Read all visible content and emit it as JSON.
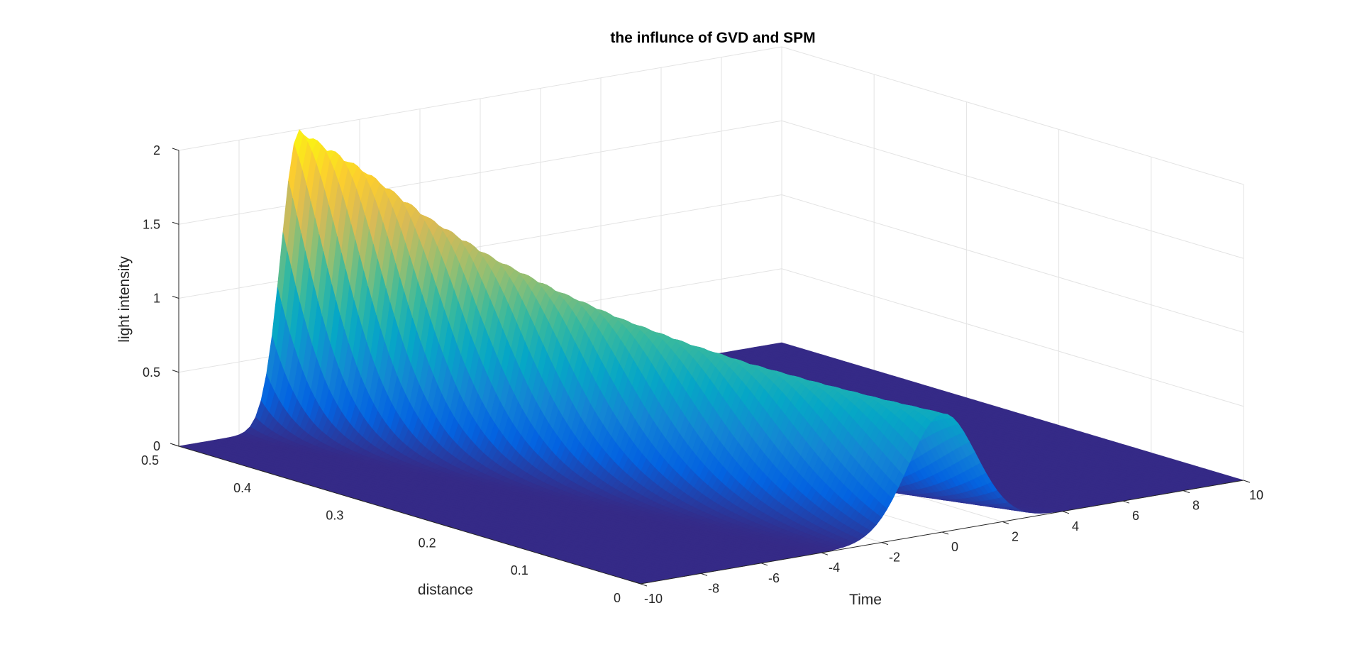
{
  "chart_data": {
    "type": "surface",
    "title": "the influnce of GVD and SPM",
    "xlabel": "Time",
    "ylabel": "distance",
    "zlabel": "light intensity",
    "xlim": [
      -10,
      10
    ],
    "ylim": [
      0,
      0.5
    ],
    "zlim": [
      0,
      2
    ],
    "xticks": [
      "-10",
      "-8",
      "-6",
      "-4",
      "-2",
      "0",
      "2",
      "4",
      "6",
      "8",
      "10"
    ],
    "yticks": [
      "0",
      "0.1",
      "0.2",
      "0.3",
      "0.4",
      "0.5"
    ],
    "zticks": [
      "0",
      "0.5",
      "1",
      "1.5",
      "2"
    ],
    "grid": true,
    "colormap": [
      "#352a87",
      "#0363e1",
      "#1485d4",
      "#06a7c6",
      "#38b99e",
      "#92bf73",
      "#d9ba56",
      "#fcce2e",
      "#f9fb0e"
    ],
    "distance_samples": [
      0,
      0.05,
      0.1,
      0.15,
      0.2,
      0.25,
      0.3,
      0.35,
      0.4,
      0.45,
      0.5
    ],
    "peak_intensity": [
      0.8,
      0.83,
      0.87,
      0.92,
      0.99,
      1.08,
      1.2,
      1.35,
      1.55,
      1.8,
      2.0
    ],
    "pulse_center_time": [
      0,
      -0.6,
      -1.2,
      -1.8,
      -2.4,
      -3.0,
      -3.6,
      -4.2,
      -4.8,
      -5.4,
      -6.0
    ],
    "pulse_width": [
      1.6,
      1.52,
      1.44,
      1.36,
      1.28,
      1.2,
      1.12,
      1.04,
      0.97,
      0.9,
      0.85
    ]
  }
}
